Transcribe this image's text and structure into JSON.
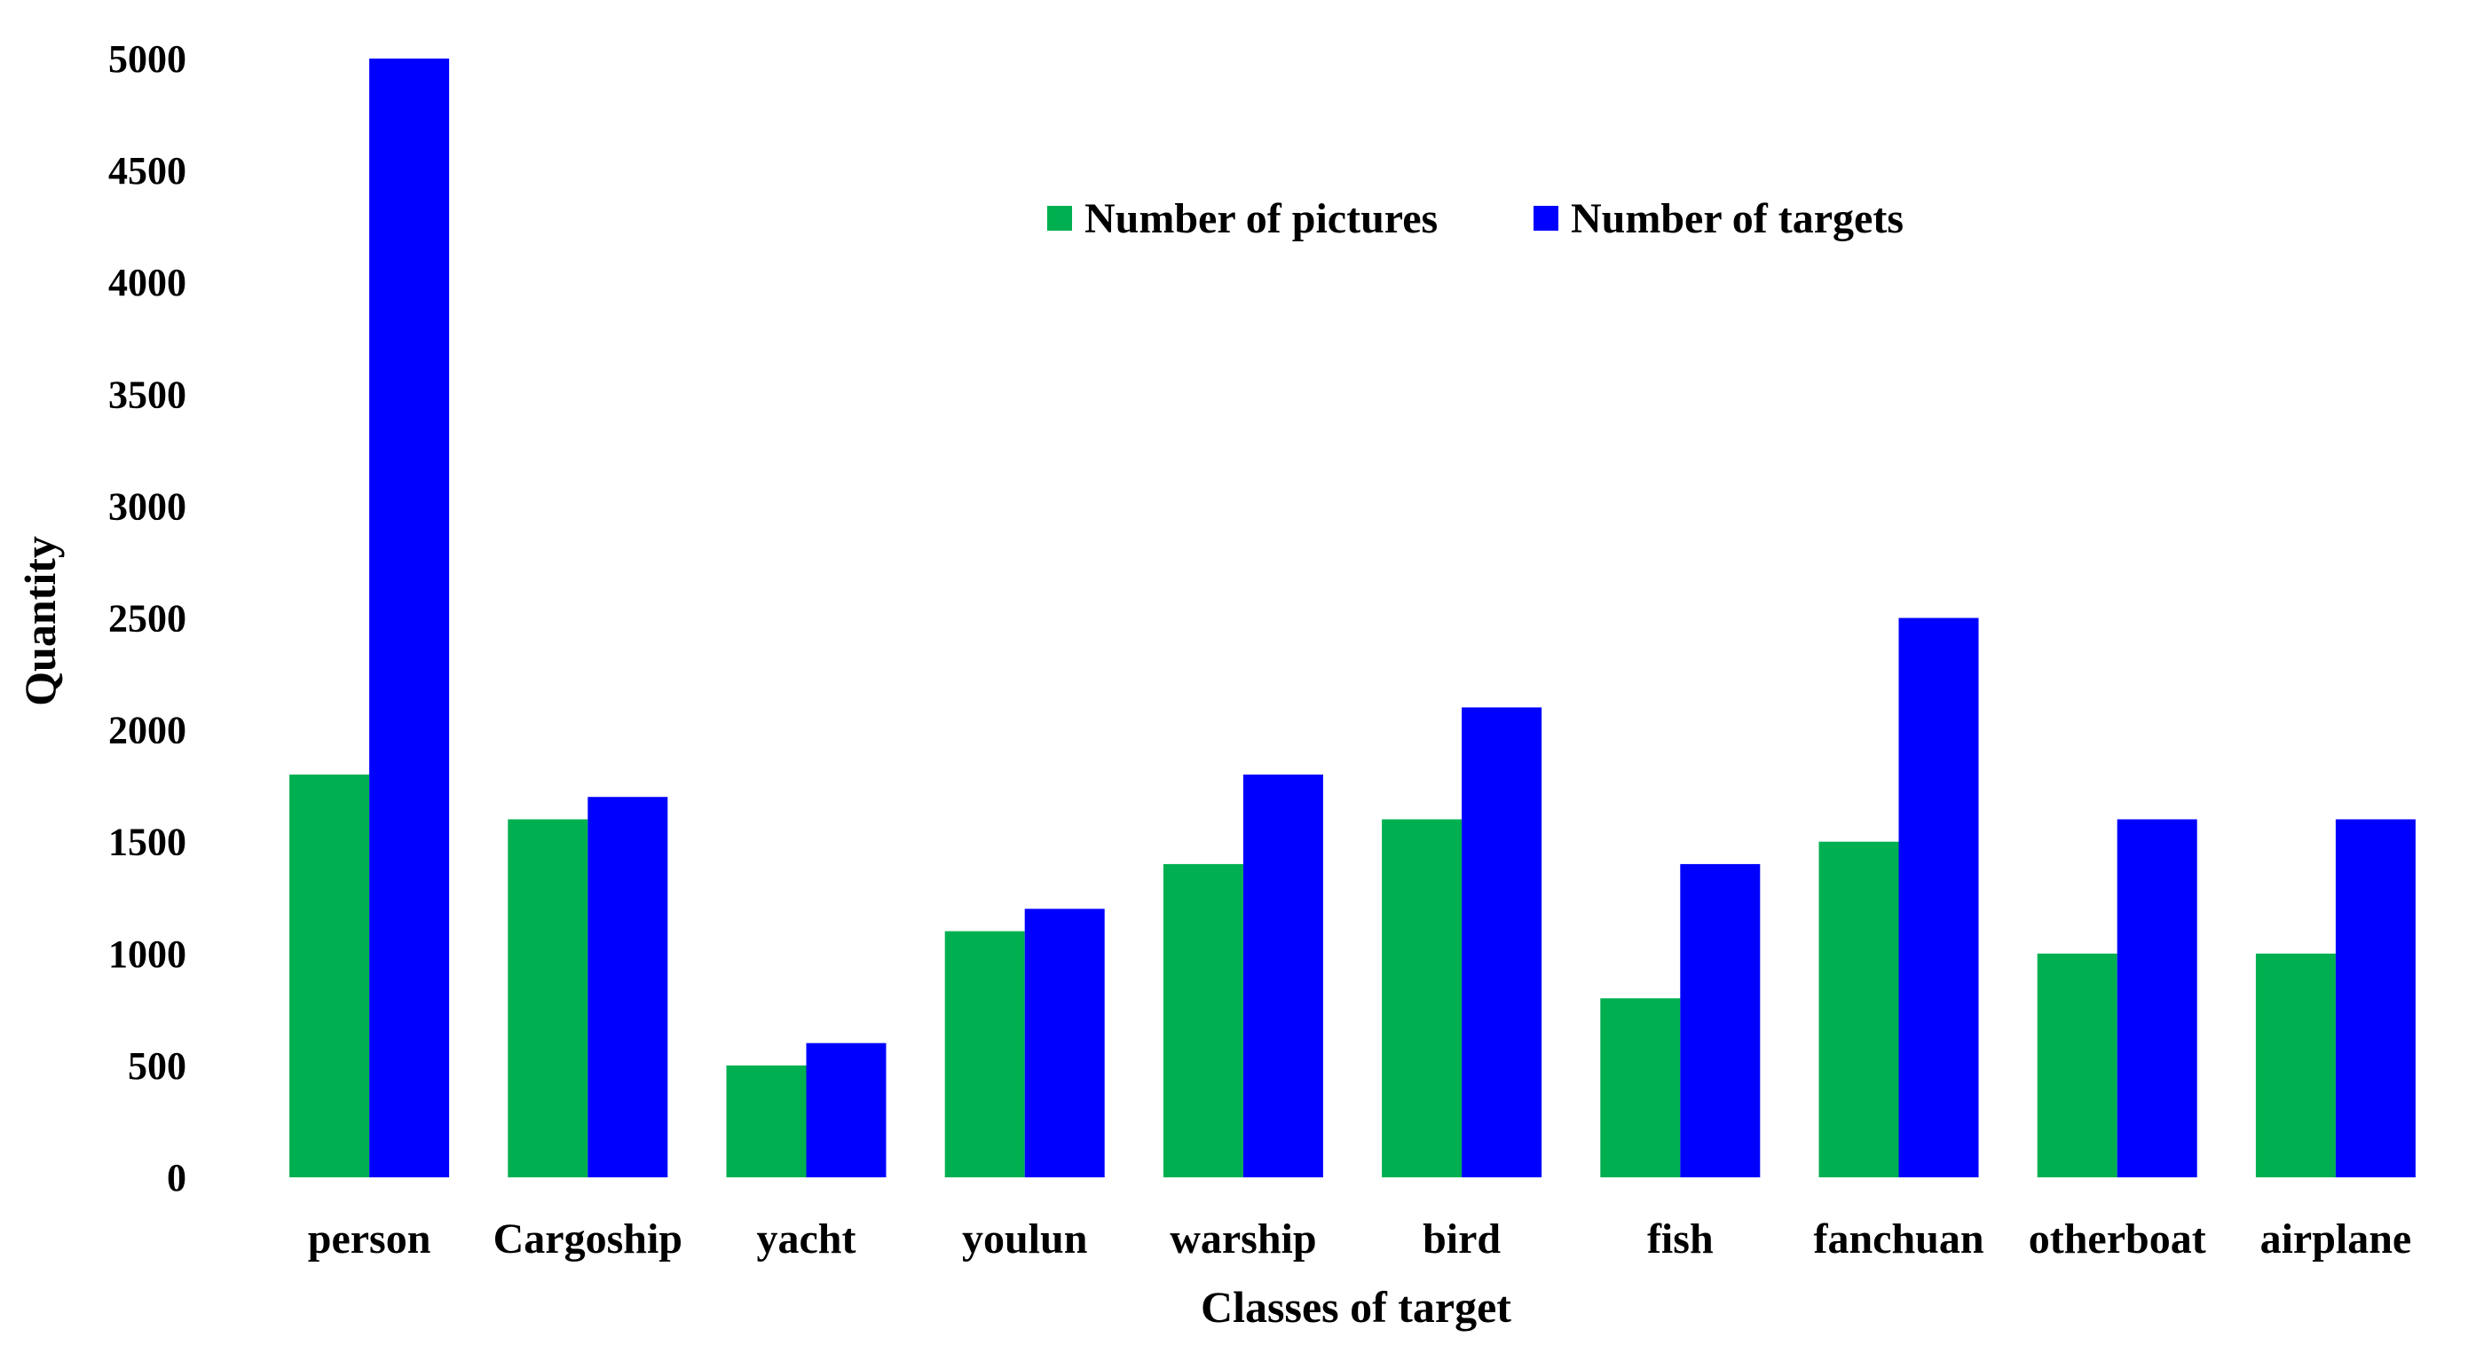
{
  "chart_data": {
    "type": "bar",
    "title": "",
    "xlabel": "Classes of target",
    "ylabel": "Quantity",
    "ylim": [
      0,
      5000
    ],
    "yticks": [
      0,
      500,
      1000,
      1500,
      2000,
      2500,
      3000,
      3500,
      4000,
      4500,
      5000
    ],
    "grid": false,
    "legend_position": "top-center",
    "categories": [
      "person",
      "Cargoship",
      "yacht",
      "youlun",
      "warship",
      "bird",
      "fish",
      "fanchuan",
      "otherboat",
      "airplane"
    ],
    "series": [
      {
        "name": "Number of pictures",
        "color": "#00b050",
        "values": [
          1800,
          1600,
          500,
          1100,
          1400,
          1600,
          800,
          1500,
          1000,
          1000
        ]
      },
      {
        "name": "Number of targets",
        "color": "#0000ff",
        "values": [
          5000,
          1700,
          600,
          1200,
          1800,
          2100,
          1400,
          2500,
          1600,
          1600
        ]
      }
    ]
  }
}
